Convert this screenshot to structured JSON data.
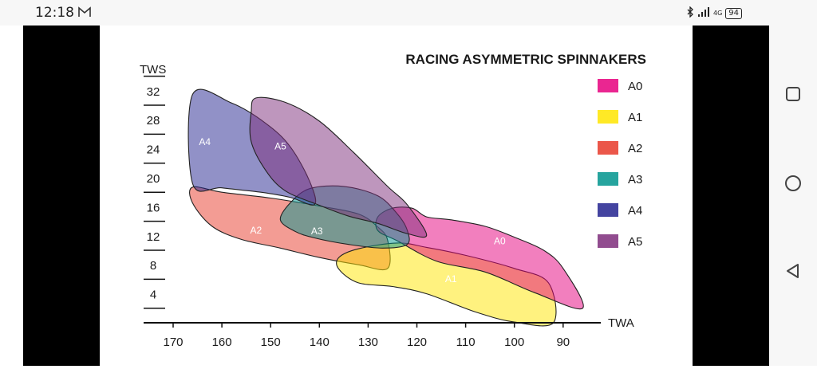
{
  "status_bar": {
    "time": "12:18",
    "mail_icon": "gmail-icon",
    "network": "4G",
    "battery": "94"
  },
  "navigation": {
    "recents_icon": "square-icon",
    "home_icon": "circle-icon",
    "back_icon": "triangle-back-icon"
  },
  "chart_data": {
    "type": "area",
    "title": "RACING ASYMMETRIC SPINNAKERS",
    "xlabel": "TWA",
    "ylabel": "TWS",
    "x_reversed": true,
    "x_ticks": [
      170,
      160,
      150,
      140,
      130,
      120,
      110,
      100,
      90
    ],
    "y_ticks": [
      4,
      8,
      12,
      16,
      20,
      24,
      28,
      32
    ],
    "xlim": [
      174,
      84
    ],
    "ylim": [
      0,
      36
    ],
    "legend_position": "right",
    "series": [
      {
        "name": "A0",
        "color": "#e6007e",
        "label_at": [
          103,
          10.8
        ],
        "points": [
          [
            128,
            14.6
          ],
          [
            125,
            15.8
          ],
          [
            121,
            15.8
          ],
          [
            118,
            14.6
          ],
          [
            113,
            14.2
          ],
          [
            106,
            13.3
          ],
          [
            100,
            11.8
          ],
          [
            94,
            10
          ],
          [
            90,
            7.5
          ],
          [
            86,
            2
          ],
          [
            96,
            4.2
          ],
          [
            106,
            7
          ],
          [
            116,
            8.5
          ],
          [
            124,
            11.3
          ],
          [
            128,
            12.7
          ]
        ]
      },
      {
        "name": "A1",
        "color": "#ffe500",
        "label_at": [
          113,
          5.6
        ],
        "points": [
          [
            136,
            9
          ],
          [
            132,
            10.2
          ],
          [
            124,
            11
          ],
          [
            118,
            10.4
          ],
          [
            110,
            9.3
          ],
          [
            100,
            7.5
          ],
          [
            93,
            5.5
          ],
          [
            92,
            0
          ],
          [
            100,
            0.1
          ],
          [
            108,
            1.5
          ],
          [
            118,
            4
          ],
          [
            125,
            5
          ],
          [
            132,
            5.5
          ],
          [
            136,
            7.4
          ]
        ]
      },
      {
        "name": "A2",
        "color": "#e83a2a",
        "label_at": [
          153,
          12.3
        ],
        "points": [
          [
            166,
            18.7
          ],
          [
            160,
            18
          ],
          [
            150,
            17.2
          ],
          [
            140,
            16.1
          ],
          [
            132,
            15
          ],
          [
            128,
            13.2
          ],
          [
            126,
            11.4
          ],
          [
            126,
            7.5
          ],
          [
            132,
            8
          ],
          [
            140,
            9
          ],
          [
            148,
            10.3
          ],
          [
            156,
            11.5
          ],
          [
            162,
            13.3
          ],
          [
            166,
            16.5
          ]
        ]
      },
      {
        "name": "A3",
        "color": "#00948d",
        "label_at": [
          140.5,
          12.2
        ],
        "points": [
          [
            146,
            16.5
          ],
          [
            142,
            18.5
          ],
          [
            135,
            18.8
          ],
          [
            128,
            17.5
          ],
          [
            124,
            15
          ],
          [
            122,
            12.8
          ],
          [
            122,
            10.8
          ],
          [
            127,
            10.3
          ],
          [
            134,
            10.8
          ],
          [
            141,
            11.7
          ],
          [
            145,
            12.6
          ],
          [
            148,
            14.2
          ]
        ]
      },
      {
        "name": "A4",
        "color": "#23238f",
        "label_at": [
          163.5,
          24.5
        ],
        "points": [
          [
            166,
            31.5
          ],
          [
            158,
            30.3
          ],
          [
            151,
            27.5
          ],
          [
            146,
            24.3
          ],
          [
            142,
            19.5
          ],
          [
            141,
            16.3
          ],
          [
            146,
            17.3
          ],
          [
            152,
            18
          ],
          [
            160,
            18.6
          ],
          [
            166,
            19.2
          ]
        ]
      },
      {
        "name": "A5",
        "color": "#7e2d7b",
        "label_at": [
          148,
          23.9
        ],
        "points": [
          [
            153,
            31
          ],
          [
            147,
            30.4
          ],
          [
            140,
            27.8
          ],
          [
            133,
            23.5
          ],
          [
            126,
            18.8
          ],
          [
            122,
            16.3
          ],
          [
            118,
            12.1
          ],
          [
            122,
            12.3
          ],
          [
            128,
            13.7
          ],
          [
            134,
            14.7
          ],
          [
            140,
            16.2
          ],
          [
            147,
            18.2
          ],
          [
            151,
            21
          ],
          [
            154,
            25
          ],
          [
            154,
            29
          ]
        ]
      }
    ]
  }
}
